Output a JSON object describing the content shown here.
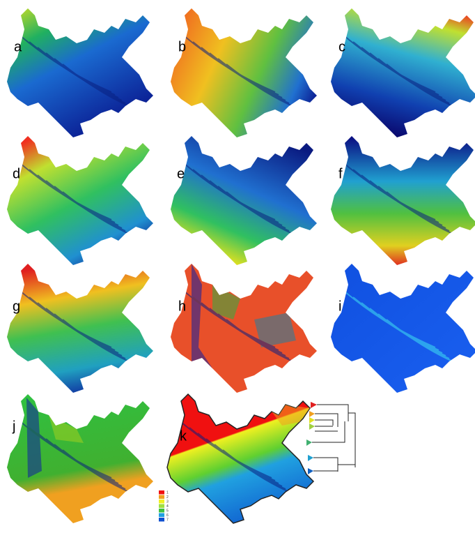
{
  "panels": [
    {
      "label": "a"
    },
    {
      "label": "b"
    },
    {
      "label": "c"
    },
    {
      "label": "d"
    },
    {
      "label": "e"
    },
    {
      "label": "f"
    },
    {
      "label": "g"
    },
    {
      "label": "h"
    },
    {
      "label": "i"
    },
    {
      "label": "j"
    },
    {
      "label": "k"
    }
  ],
  "legend": {
    "items": [
      "1",
      "2",
      "3",
      "4",
      "5",
      "6",
      "7"
    ]
  }
}
